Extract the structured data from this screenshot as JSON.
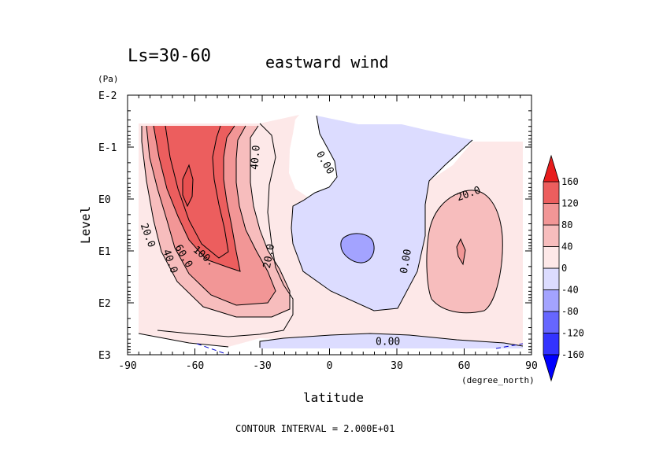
{
  "chart_data": {
    "type": "contour",
    "title": "eastward wind",
    "subtitle": "Ls=30-60",
    "xlabel": "latitude",
    "x_units": "(degree_north)",
    "ylabel": "Level",
    "y_units": "(Pa)",
    "y_scale": "log",
    "xlim": [
      -90,
      90
    ],
    "ylim_log10_pa": [
      3,
      -2
    ],
    "x_ticks": [
      "-90",
      "-60",
      "-30",
      "0",
      "30",
      "60",
      "90"
    ],
    "x_tick_values": [
      -90,
      -60,
      -30,
      0,
      30,
      60,
      90
    ],
    "y_ticks": [
      "E-2",
      "E-1",
      "E0",
      "E1",
      "E2",
      "E3"
    ],
    "y_tick_values": [
      -2,
      -1,
      0,
      1,
      2,
      3
    ],
    "contour_interval_text": "CONTOUR INTERVAL = 2.000E+01",
    "contour_interval": 20,
    "contour_labels": [
      {
        "text": "40.0",
        "lat": -33,
        "logp": -0.8,
        "angle": -85
      },
      {
        "text": "0.00",
        "lat": -2,
        "logp": -0.7,
        "angle": 60
      },
      {
        "text": "20.0",
        "lat": 62,
        "logp": -0.1,
        "angle": -20
      },
      {
        "text": "20.0",
        "lat": -81,
        "logp": 0.7,
        "angle": 70
      },
      {
        "text": "40.0",
        "lat": -71,
        "logp": 1.2,
        "angle": 70
      },
      {
        "text": "60.0",
        "lat": -65,
        "logp": 1.1,
        "angle": 60
      },
      {
        "text": "100.",
        "lat": -56,
        "logp": 1.1,
        "angle": 40
      },
      {
        "text": "20.0",
        "lat": -27,
        "logp": 1.1,
        "angle": -80
      },
      {
        "text": "0.00",
        "lat": 34,
        "logp": 1.2,
        "angle": -80
      },
      {
        "text": "0.00",
        "lat": 26,
        "logp": 2.75,
        "angle": 0
      }
    ],
    "colorbar": {
      "levels": [
        -160,
        -120,
        -80,
        -40,
        0,
        40,
        80,
        120,
        160
      ],
      "tick_labels": [
        "160",
        "120",
        "80",
        "40",
        "0",
        "-40",
        "-80",
        "-120",
        "-160"
      ],
      "colors_low_to_high": [
        "#0000ff",
        "#3333ff",
        "#6666ff",
        "#a3a3ff",
        "#dcdcff",
        "#fde8e8",
        "#f7bdbd",
        "#f29696",
        "#ec5e5e",
        "#e81c1c"
      ]
    }
  }
}
